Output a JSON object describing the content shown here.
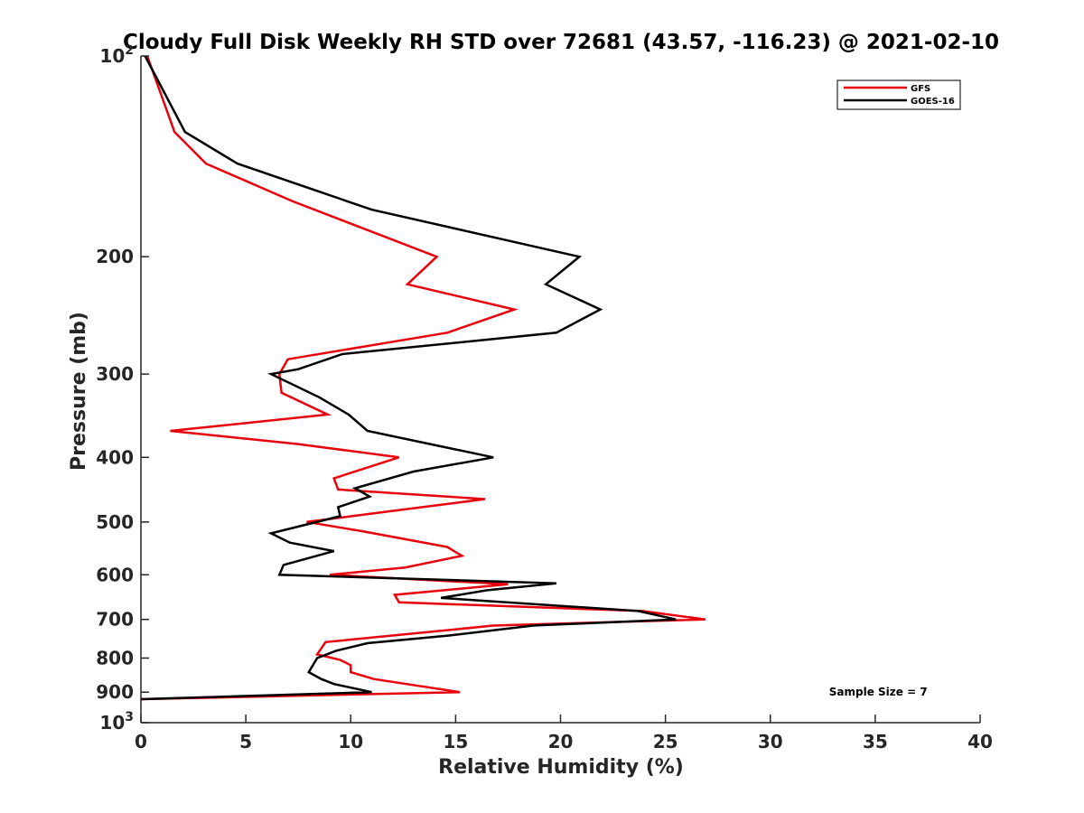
{
  "chart_data": {
    "type": "line",
    "title": "Cloudy Full Disk Weekly RH STD over 72681 (43.57, -116.23) @ 2021-02-10",
    "xlabel": "Relative Humidity (%)",
    "ylabel": "Pressure (mb)",
    "xlim": [
      0,
      40
    ],
    "ylim": [
      100,
      1000
    ],
    "y_scale": "log",
    "y_reversed": true,
    "x_ticks": [
      0,
      5,
      10,
      15,
      20,
      25,
      30,
      35,
      40
    ],
    "y_ticks": [
      {
        "value": 100,
        "base": "10",
        "exp": "2"
      },
      {
        "value": 200,
        "label": "200"
      },
      {
        "value": 300,
        "label": "300"
      },
      {
        "value": 400,
        "label": "400"
      },
      {
        "value": 500,
        "label": "500"
      },
      {
        "value": 600,
        "label": "600"
      },
      {
        "value": 700,
        "label": "700"
      },
      {
        "value": 800,
        "label": "800"
      },
      {
        "value": 900,
        "label": "900"
      },
      {
        "value": 1000,
        "base": "10",
        "exp": "3"
      }
    ],
    "grid": false,
    "legend_position": "top-right",
    "series": [
      {
        "name": "GFS",
        "color": "#e8000b",
        "points": [
          [
            0.3,
            100
          ],
          [
            1.6,
            130
          ],
          [
            3.1,
            145
          ],
          [
            7.2,
            165
          ],
          [
            14.1,
            200
          ],
          [
            12.7,
            220
          ],
          [
            17.8,
            240
          ],
          [
            14.6,
            260
          ],
          [
            7.0,
            285
          ],
          [
            6.6,
            300
          ],
          [
            6.7,
            320
          ],
          [
            8.9,
            345
          ],
          [
            1.4,
            365
          ],
          [
            7.5,
            382
          ],
          [
            12.3,
            400
          ],
          [
            9.2,
            430
          ],
          [
            9.4,
            447
          ],
          [
            16.4,
            462
          ],
          [
            11.6,
            483
          ],
          [
            7.9,
            500
          ],
          [
            10.5,
            516
          ],
          [
            14.6,
            545
          ],
          [
            15.3,
            562
          ],
          [
            12.6,
            585
          ],
          [
            9.0,
            600
          ],
          [
            17.5,
            620
          ],
          [
            12.1,
            643
          ],
          [
            12.3,
            660
          ],
          [
            23.9,
            680
          ],
          [
            26.9,
            700
          ],
          [
            16.8,
            715
          ],
          [
            13.0,
            735
          ],
          [
            8.8,
            757
          ],
          [
            8.4,
            790
          ],
          [
            9.5,
            805
          ],
          [
            10.0,
            820
          ],
          [
            10.0,
            840
          ],
          [
            11.1,
            860
          ],
          [
            15.2,
            900
          ],
          [
            0.0,
            922
          ]
        ]
      },
      {
        "name": "GOES-16",
        "color": "#000000",
        "points": [
          [
            0.2,
            100
          ],
          [
            2.1,
            130
          ],
          [
            4.6,
            145
          ],
          [
            11.0,
            170
          ],
          [
            20.9,
            200
          ],
          [
            19.3,
            220
          ],
          [
            21.9,
            240
          ],
          [
            19.8,
            260
          ],
          [
            9.6,
            280
          ],
          [
            7.5,
            295
          ],
          [
            6.2,
            300
          ],
          [
            8.5,
            325
          ],
          [
            9.9,
            345
          ],
          [
            10.8,
            365
          ],
          [
            14.3,
            385
          ],
          [
            16.8,
            400
          ],
          [
            13.0,
            420
          ],
          [
            10.2,
            445
          ],
          [
            10.9,
            458
          ],
          [
            9.4,
            475
          ],
          [
            9.5,
            490
          ],
          [
            6.2,
            520
          ],
          [
            7.1,
            537
          ],
          [
            9.2,
            553
          ],
          [
            6.8,
            580
          ],
          [
            6.6,
            600
          ],
          [
            19.8,
            618
          ],
          [
            16.5,
            633
          ],
          [
            14.3,
            650
          ],
          [
            23.7,
            680
          ],
          [
            25.5,
            700
          ],
          [
            18.7,
            715
          ],
          [
            14.7,
            740
          ],
          [
            10.8,
            760
          ],
          [
            9.3,
            780
          ],
          [
            8.4,
            800
          ],
          [
            8.2,
            820
          ],
          [
            8.0,
            840
          ],
          [
            8.6,
            860
          ],
          [
            9.2,
            875
          ],
          [
            11.0,
            900
          ],
          [
            0.0,
            922
          ]
        ]
      }
    ],
    "annotations": [
      {
        "text": "Sample Size = 7",
        "x": 32.8,
        "y": 900
      }
    ]
  }
}
